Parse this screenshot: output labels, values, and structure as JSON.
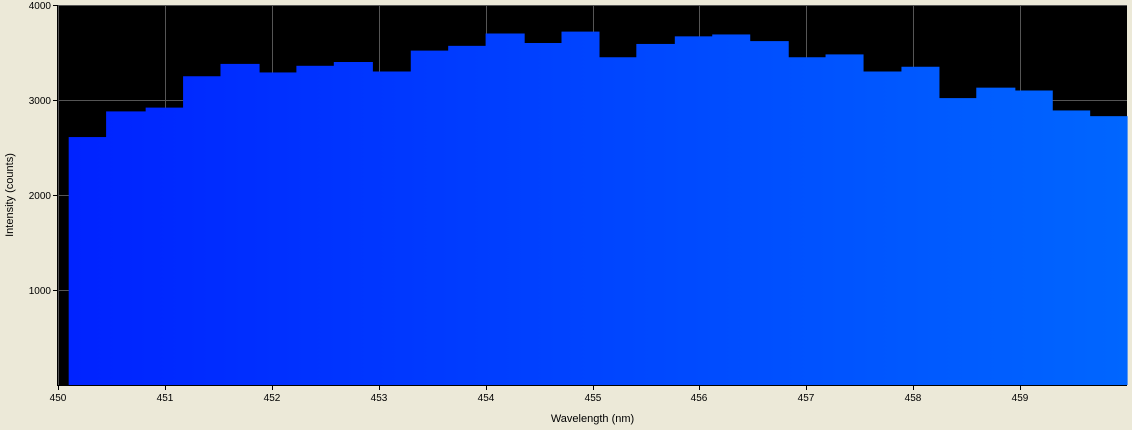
{
  "chart_data": {
    "type": "bar",
    "xlabel": "Wavelength (nm)",
    "ylabel": "Intensity (counts)",
    "xlim": [
      450,
      460
    ],
    "ylim": [
      0,
      4000
    ],
    "x_ticks": [
      450,
      451,
      452,
      453,
      454,
      455,
      456,
      457,
      458,
      459
    ],
    "y_ticks": [
      1000,
      2000,
      3000,
      4000
    ],
    "grid": true,
    "legend": "none",
    "plot_background": "#000000",
    "grid_color": "#555555",
    "bar_color_start": "#0022ff",
    "bar_color_end": "#0066ff",
    "bins": [
      {
        "x_start": 450.1,
        "x_end": 450.45,
        "value": 2610
      },
      {
        "x_start": 450.45,
        "x_end": 450.82,
        "value": 2880
      },
      {
        "x_start": 450.82,
        "x_end": 451.17,
        "value": 2920
      },
      {
        "x_start": 451.17,
        "x_end": 451.52,
        "value": 3250
      },
      {
        "x_start": 451.52,
        "x_end": 451.88,
        "value": 3380
      },
      {
        "x_start": 451.88,
        "x_end": 452.23,
        "value": 3290
      },
      {
        "x_start": 452.23,
        "x_end": 452.58,
        "value": 3360
      },
      {
        "x_start": 452.58,
        "x_end": 452.94,
        "value": 3400
      },
      {
        "x_start": 452.94,
        "x_end": 453.3,
        "value": 3300
      },
      {
        "x_start": 453.3,
        "x_end": 453.65,
        "value": 3520
      },
      {
        "x_start": 453.65,
        "x_end": 454.0,
        "value": 3570
      },
      {
        "x_start": 454.0,
        "x_end": 454.36,
        "value": 3700
      },
      {
        "x_start": 454.36,
        "x_end": 454.71,
        "value": 3600
      },
      {
        "x_start": 454.71,
        "x_end": 455.06,
        "value": 3720
      },
      {
        "x_start": 455.06,
        "x_end": 455.41,
        "value": 3450
      },
      {
        "x_start": 455.41,
        "x_end": 455.77,
        "value": 3590
      },
      {
        "x_start": 455.77,
        "x_end": 456.12,
        "value": 3670
      },
      {
        "x_start": 456.12,
        "x_end": 456.47,
        "value": 3690
      },
      {
        "x_start": 456.47,
        "x_end": 456.83,
        "value": 3620
      },
      {
        "x_start": 456.83,
        "x_end": 457.18,
        "value": 3450
      },
      {
        "x_start": 457.18,
        "x_end": 457.53,
        "value": 3480
      },
      {
        "x_start": 457.53,
        "x_end": 457.89,
        "value": 3300
      },
      {
        "x_start": 457.89,
        "x_end": 458.24,
        "value": 3350
      },
      {
        "x_start": 458.24,
        "x_end": 458.59,
        "value": 3020
      },
      {
        "x_start": 458.59,
        "x_end": 458.95,
        "value": 3130
      },
      {
        "x_start": 458.95,
        "x_end": 459.3,
        "value": 3100
      },
      {
        "x_start": 459.3,
        "x_end": 459.65,
        "value": 2890
      },
      {
        "x_start": 459.65,
        "x_end": 460.0,
        "value": 2830
      }
    ]
  }
}
